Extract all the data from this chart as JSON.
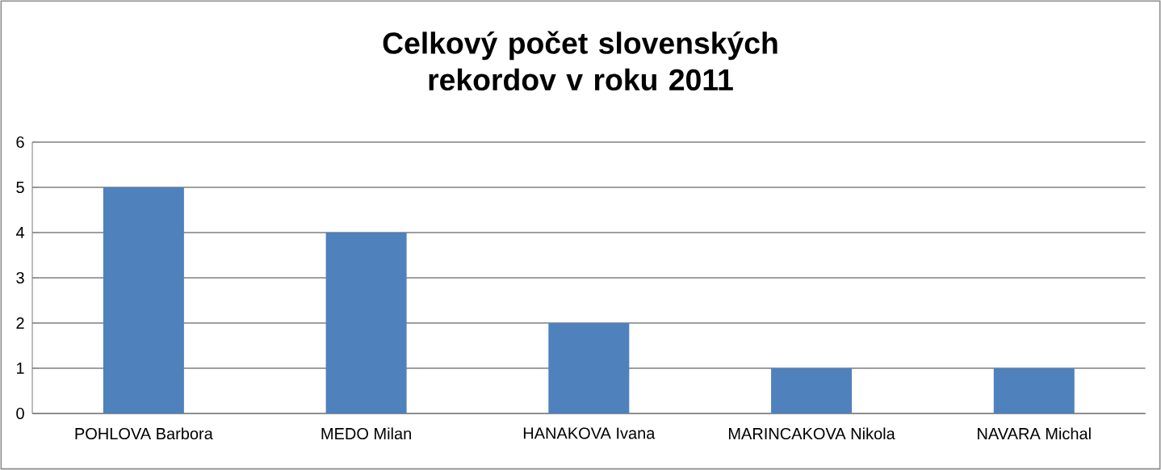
{
  "chart_data": {
    "type": "bar",
    "title": "Celkový počet slovenských rekordov v roku 2011",
    "categories": [
      "POHLOVA Barbora",
      "MEDO Milan",
      "HANAKOVA Ivana",
      "MARINCAKOVA Nikola",
      "NAVARA Michal"
    ],
    "values": [
      5,
      4,
      2,
      1,
      1
    ],
    "color": "#4f81bd",
    "ylim": [
      0,
      6
    ],
    "yticks": [
      0,
      1,
      2,
      3,
      4,
      5,
      6
    ],
    "grid": "y"
  }
}
